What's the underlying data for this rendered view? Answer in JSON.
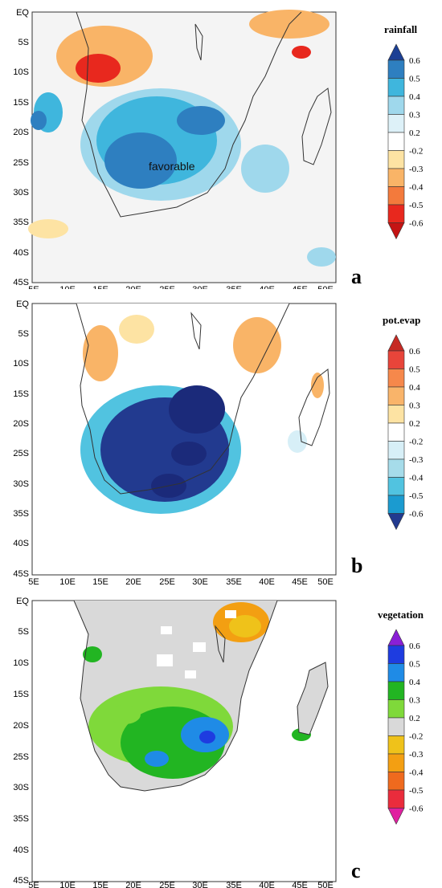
{
  "panels": [
    {
      "letter": "a",
      "legend": {
        "title": "rainfall",
        "labels": [
          "0.6",
          "0.5",
          "0.4",
          "0.3",
          "0.2",
          "-0.2",
          "-0.3",
          "-0.4",
          "-0.5",
          "-0.6"
        ],
        "colors": [
          "#1c3f94",
          "#2e7fc0",
          "#3fb6dd",
          "#9fd8ec",
          "#ddf1f8",
          "#ffffff",
          "#fde3a3",
          "#f9b467",
          "#f37a3c",
          "#e8281e",
          "#c41414"
        ]
      },
      "annotation": "favorable"
    },
    {
      "letter": "b",
      "legend": {
        "title": "pot.evap",
        "labels": [
          "0.6",
          "0.5",
          "0.4",
          "0.3",
          "0.2",
          "-0.2",
          "-0.3",
          "-0.4",
          "-0.5",
          "-0.6"
        ],
        "colors": [
          "#c62a24",
          "#e8453a",
          "#f6884b",
          "#f9b46a",
          "#fde3a3",
          "#ffffff",
          "#d7eff7",
          "#a6dcea",
          "#51c3e0",
          "#1b9bd0",
          "#223a8f"
        ]
      }
    },
    {
      "letter": "c",
      "legend": {
        "title": "vegetation",
        "labels": [
          "0.6",
          "0.5",
          "0.4",
          "0.3",
          "0.2",
          "-0.2",
          "-0.3",
          "-0.4",
          "-0.5",
          "-0.6"
        ],
        "colors": [
          "#8a1fd6",
          "#1e3ce0",
          "#1f8be6",
          "#22b522",
          "#7fd93a",
          "#d9d9d9",
          "#efc21a",
          "#f39f12",
          "#ef6a1e",
          "#ea2c3c",
          "#e01fa0"
        ]
      }
    }
  ],
  "axes": {
    "y_ticks": [
      "EQ",
      "5S",
      "10S",
      "15S",
      "20S",
      "25S",
      "30S",
      "35S",
      "40S",
      "45S"
    ],
    "x_ticks": [
      "5E",
      "10E",
      "15E",
      "20E",
      "25E",
      "30E",
      "35E",
      "40E",
      "45E",
      "50E"
    ]
  }
}
